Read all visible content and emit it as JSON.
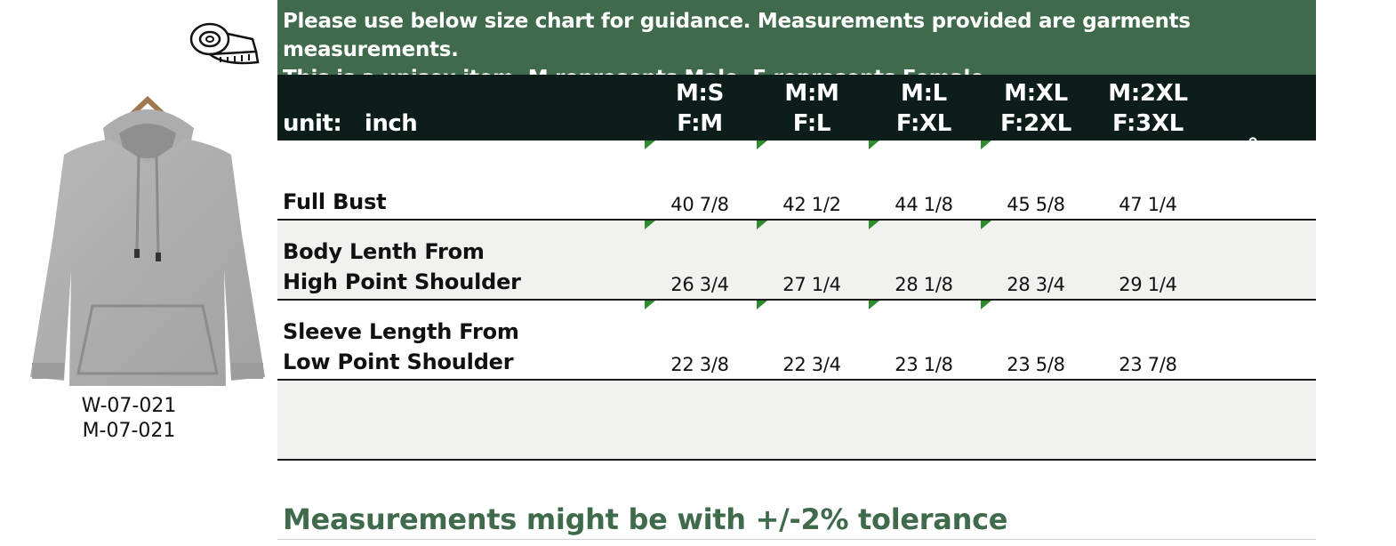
{
  "banner": {
    "line1": "Please use below size chart for guidance. Measurements provided are garments measurements.",
    "line2": "This is a unisex item. M represents Male, F represents Female"
  },
  "header": {
    "unit_label": "unit:",
    "unit_value": "inch",
    "sizes": [
      {
        "male": "M:S",
        "female": "F:M"
      },
      {
        "male": "M:M",
        "female": "F:L"
      },
      {
        "male": "M:L",
        "female": "F:XL"
      },
      {
        "male": "M:XL",
        "female": "F:2XL"
      },
      {
        "male": "M:2XL",
        "female": "F:3XL"
      }
    ],
    "trailing_mark": "。"
  },
  "rows": [
    {
      "label_lines": [
        "Full Bust"
      ],
      "values": [
        "40 7/8",
        "42 1/2",
        "44 1/8",
        "45 5/8",
        "47 1/4"
      ]
    },
    {
      "label_lines": [
        "Body Lenth From",
        "High Point Shoulder"
      ],
      "values": [
        "26 3/4",
        "27 1/4",
        "28 1/8",
        "28 3/4",
        "29 1/4"
      ]
    },
    {
      "label_lines": [
        "Sleeve Length From",
        "Low Point Shoulder"
      ],
      "values": [
        "22 3/8",
        "22 3/4",
        "23 1/8",
        "23 5/8",
        "23 7/8"
      ]
    }
  ],
  "product": {
    "image": "grey-hoodie-on-hanger",
    "codes": [
      "W-07-021",
      "M-07-021"
    ],
    "icon": "measuring-tape-icon"
  },
  "footer": {
    "note": "Measurements might be with +/-2% tolerance"
  },
  "colors": {
    "banner_bg": "#3f6b4c",
    "header_bg": "#0c1d1c",
    "accent_green": "#2e8b2e",
    "alt_row_bg": "#f1f1f0"
  }
}
